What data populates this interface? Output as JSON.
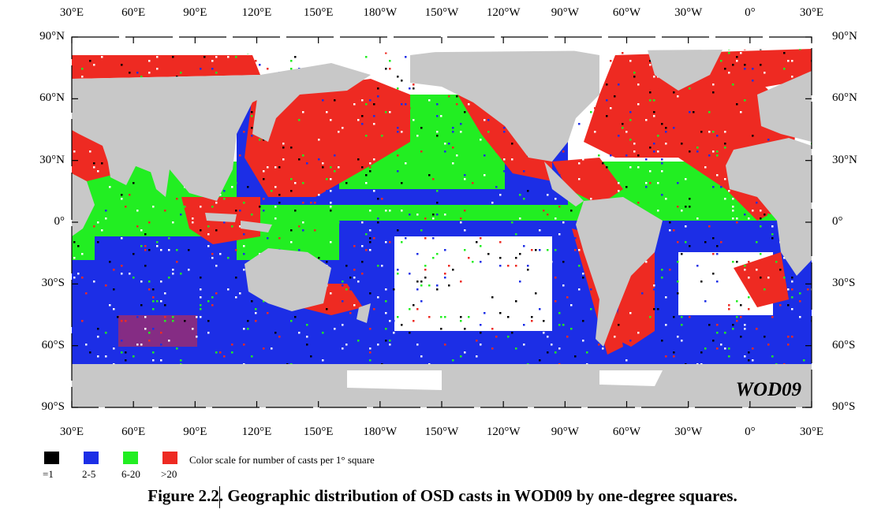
{
  "map": {
    "watermark": "WOD09",
    "colors": {
      "land": "#c8c8c8",
      "ocean_unsampled": "#ffffff",
      "eq1": "#000000",
      "r2_5": "#1c2ee6",
      "r6_20": "#22ee22",
      "gt20": "#ee2a22",
      "frame": "#000000"
    },
    "top_lon_labels": [
      "30°E",
      "60°E",
      "90°E",
      "120°E",
      "150°E",
      "180°W",
      "150°W",
      "120°W",
      "90°W",
      "60°W",
      "30°W",
      "0°",
      "30°E"
    ],
    "bottom_lon_labels": [
      "30°E",
      "60°E",
      "90°E",
      "120°E",
      "150°E",
      "180°W",
      "150°W",
      "120°W",
      "90°W",
      "60°W",
      "30°W",
      "0°",
      "30°E"
    ],
    "left_lat_labels": [
      "90°N",
      "60°N",
      "30°N",
      "0°",
      "30°S",
      "60°S",
      "90°S"
    ],
    "right_lat_labels": [
      "90°N",
      "60°N",
      "30°N",
      "0°",
      "30°S",
      "60°S",
      "90°S"
    ]
  },
  "legend": {
    "title": "Color scale for number of casts per 1° square",
    "items": [
      {
        "label": "=1",
        "color": "#000000"
      },
      {
        "label": "2-5",
        "color": "#1c2ee6"
      },
      {
        "label": "6-20",
        "color": "#22ee22"
      },
      {
        "label": ">20",
        "color": "#ee2a22"
      }
    ]
  },
  "caption": "Figure 2.2. Geographic distribution of OSD casts in WOD09 by one-degree squares."
}
